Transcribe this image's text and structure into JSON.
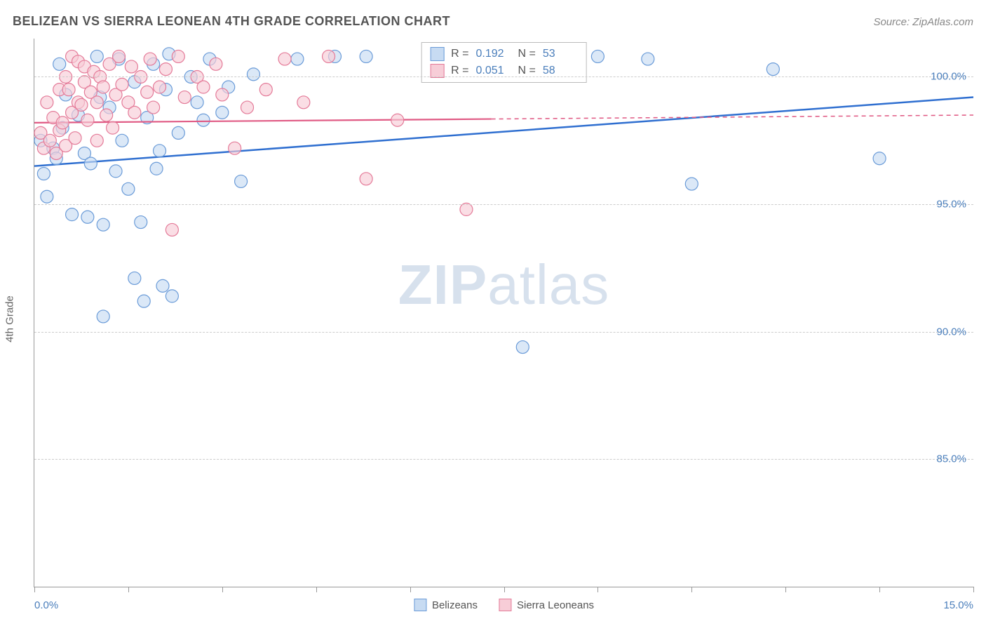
{
  "header": {
    "title": "BELIZEAN VS SIERRA LEONEAN 4TH GRADE CORRELATION CHART",
    "source": "Source: ZipAtlas.com"
  },
  "ylabel": "4th Grade",
  "watermark": {
    "bold": "ZIP",
    "light": "atlas"
  },
  "chart": {
    "type": "scatter",
    "xlim": [
      0.0,
      15.0
    ],
    "ylim": [
      80.0,
      101.5
    ],
    "xticks": [
      0.0,
      1.5,
      3.0,
      4.5,
      6.0,
      7.5,
      9.0,
      10.5,
      12.0,
      13.5,
      15.0
    ],
    "xrange_labels": {
      "min": "0.0%",
      "max": "15.0%"
    },
    "yticks": [
      85.0,
      90.0,
      95.0,
      100.0
    ],
    "ytick_labels": [
      "85.0%",
      "90.0%",
      "95.0%",
      "100.0%"
    ],
    "background_color": "#ffffff",
    "grid_color": "#cccccc",
    "marker_radius": 9,
    "marker_stroke_width": 1.2,
    "series": [
      {
        "name": "Belizeans",
        "fill": "#c7dbf2",
        "stroke": "#6a9bd8",
        "fill_opacity": 0.65,
        "trend": {
          "x1": 0.0,
          "y1": 96.5,
          "x2": 15.0,
          "y2": 99.2,
          "color": "#2f6fd0",
          "width": 2.5,
          "solid_end_x": 15.0
        },
        "points": [
          [
            0.1,
            97.5
          ],
          [
            0.15,
            96.2
          ],
          [
            0.2,
            95.3
          ],
          [
            0.3,
            97.2
          ],
          [
            0.35,
            96.8
          ],
          [
            0.4,
            100.5
          ],
          [
            0.45,
            98.0
          ],
          [
            0.5,
            99.3
          ],
          [
            0.6,
            94.6
          ],
          [
            0.7,
            98.5
          ],
          [
            0.8,
            97.0
          ],
          [
            0.85,
            94.5
          ],
          [
            0.9,
            96.6
          ],
          [
            1.0,
            100.8
          ],
          [
            1.05,
            99.2
          ],
          [
            1.1,
            94.2
          ],
          [
            1.1,
            90.6
          ],
          [
            1.2,
            98.8
          ],
          [
            1.3,
            96.3
          ],
          [
            1.35,
            100.7
          ],
          [
            1.4,
            97.5
          ],
          [
            1.5,
            95.6
          ],
          [
            1.6,
            99.8
          ],
          [
            1.6,
            92.1
          ],
          [
            1.7,
            94.3
          ],
          [
            1.75,
            91.2
          ],
          [
            1.8,
            98.4
          ],
          [
            1.9,
            100.5
          ],
          [
            1.95,
            96.4
          ],
          [
            2.0,
            97.1
          ],
          [
            2.05,
            91.8
          ],
          [
            2.1,
            99.5
          ],
          [
            2.15,
            100.9
          ],
          [
            2.2,
            91.4
          ],
          [
            2.3,
            97.8
          ],
          [
            2.5,
            100.0
          ],
          [
            2.6,
            99.0
          ],
          [
            2.7,
            98.3
          ],
          [
            2.8,
            100.7
          ],
          [
            3.0,
            98.6
          ],
          [
            3.1,
            99.6
          ],
          [
            3.3,
            95.9
          ],
          [
            3.5,
            100.1
          ],
          [
            4.2,
            100.7
          ],
          [
            4.8,
            100.8
          ],
          [
            5.3,
            100.8
          ],
          [
            7.8,
            89.4
          ],
          [
            8.0,
            100.7
          ],
          [
            9.0,
            100.8
          ],
          [
            9.8,
            100.7
          ],
          [
            10.5,
            95.8
          ],
          [
            11.8,
            100.3
          ],
          [
            13.5,
            96.8
          ]
        ]
      },
      {
        "name": "Sierra Leoneans",
        "fill": "#f7cdd7",
        "stroke": "#e47a98",
        "fill_opacity": 0.65,
        "trend": {
          "x1": 0.0,
          "y1": 98.2,
          "x2": 15.0,
          "y2": 98.5,
          "color": "#e05a84",
          "width": 2.2,
          "solid_end_x": 7.3
        },
        "points": [
          [
            0.1,
            97.8
          ],
          [
            0.15,
            97.2
          ],
          [
            0.2,
            99.0
          ],
          [
            0.25,
            97.5
          ],
          [
            0.3,
            98.4
          ],
          [
            0.35,
            97.0
          ],
          [
            0.4,
            99.5
          ],
          [
            0.4,
            97.9
          ],
          [
            0.45,
            98.2
          ],
          [
            0.5,
            100.0
          ],
          [
            0.5,
            97.3
          ],
          [
            0.55,
            99.5
          ],
          [
            0.6,
            100.8
          ],
          [
            0.6,
            98.6
          ],
          [
            0.65,
            97.6
          ],
          [
            0.7,
            99.0
          ],
          [
            0.7,
            100.6
          ],
          [
            0.75,
            98.9
          ],
          [
            0.8,
            99.8
          ],
          [
            0.8,
            100.4
          ],
          [
            0.85,
            98.3
          ],
          [
            0.9,
            99.4
          ],
          [
            0.95,
            100.2
          ],
          [
            1.0,
            99.0
          ],
          [
            1.0,
            97.5
          ],
          [
            1.05,
            100.0
          ],
          [
            1.1,
            99.6
          ],
          [
            1.15,
            98.5
          ],
          [
            1.2,
            100.5
          ],
          [
            1.25,
            98.0
          ],
          [
            1.3,
            99.3
          ],
          [
            1.35,
            100.8
          ],
          [
            1.4,
            99.7
          ],
          [
            1.5,
            99.0
          ],
          [
            1.55,
            100.4
          ],
          [
            1.6,
            98.6
          ],
          [
            1.7,
            100.0
          ],
          [
            1.8,
            99.4
          ],
          [
            1.85,
            100.7
          ],
          [
            1.9,
            98.8
          ],
          [
            2.0,
            99.6
          ],
          [
            2.1,
            100.3
          ],
          [
            2.2,
            94.0
          ],
          [
            2.3,
            100.8
          ],
          [
            2.4,
            99.2
          ],
          [
            2.6,
            100.0
          ],
          [
            2.7,
            99.6
          ],
          [
            2.9,
            100.5
          ],
          [
            3.0,
            99.3
          ],
          [
            3.2,
            97.2
          ],
          [
            3.4,
            98.8
          ],
          [
            3.7,
            99.5
          ],
          [
            4.0,
            100.7
          ],
          [
            4.3,
            99.0
          ],
          [
            4.7,
            100.8
          ],
          [
            5.3,
            96.0
          ],
          [
            5.8,
            98.3
          ],
          [
            6.9,
            94.8
          ]
        ]
      }
    ],
    "stats_box": [
      {
        "sw_fill": "#c7dbf2",
        "sw_stroke": "#6a9bd8",
        "r_label": "R =",
        "r_value": "0.192",
        "n_label": "N =",
        "n_value": "53"
      },
      {
        "sw_fill": "#f7cdd7",
        "sw_stroke": "#e47a98",
        "r_label": "R =",
        "r_value": "0.051",
        "n_label": "N =",
        "n_value": "58"
      }
    ],
    "footer_legend": [
      {
        "sw_fill": "#c7dbf2",
        "sw_stroke": "#6a9bd8",
        "label": "Belizeans"
      },
      {
        "sw_fill": "#f7cdd7",
        "sw_stroke": "#e47a98",
        "label": "Sierra Leoneans"
      }
    ]
  }
}
